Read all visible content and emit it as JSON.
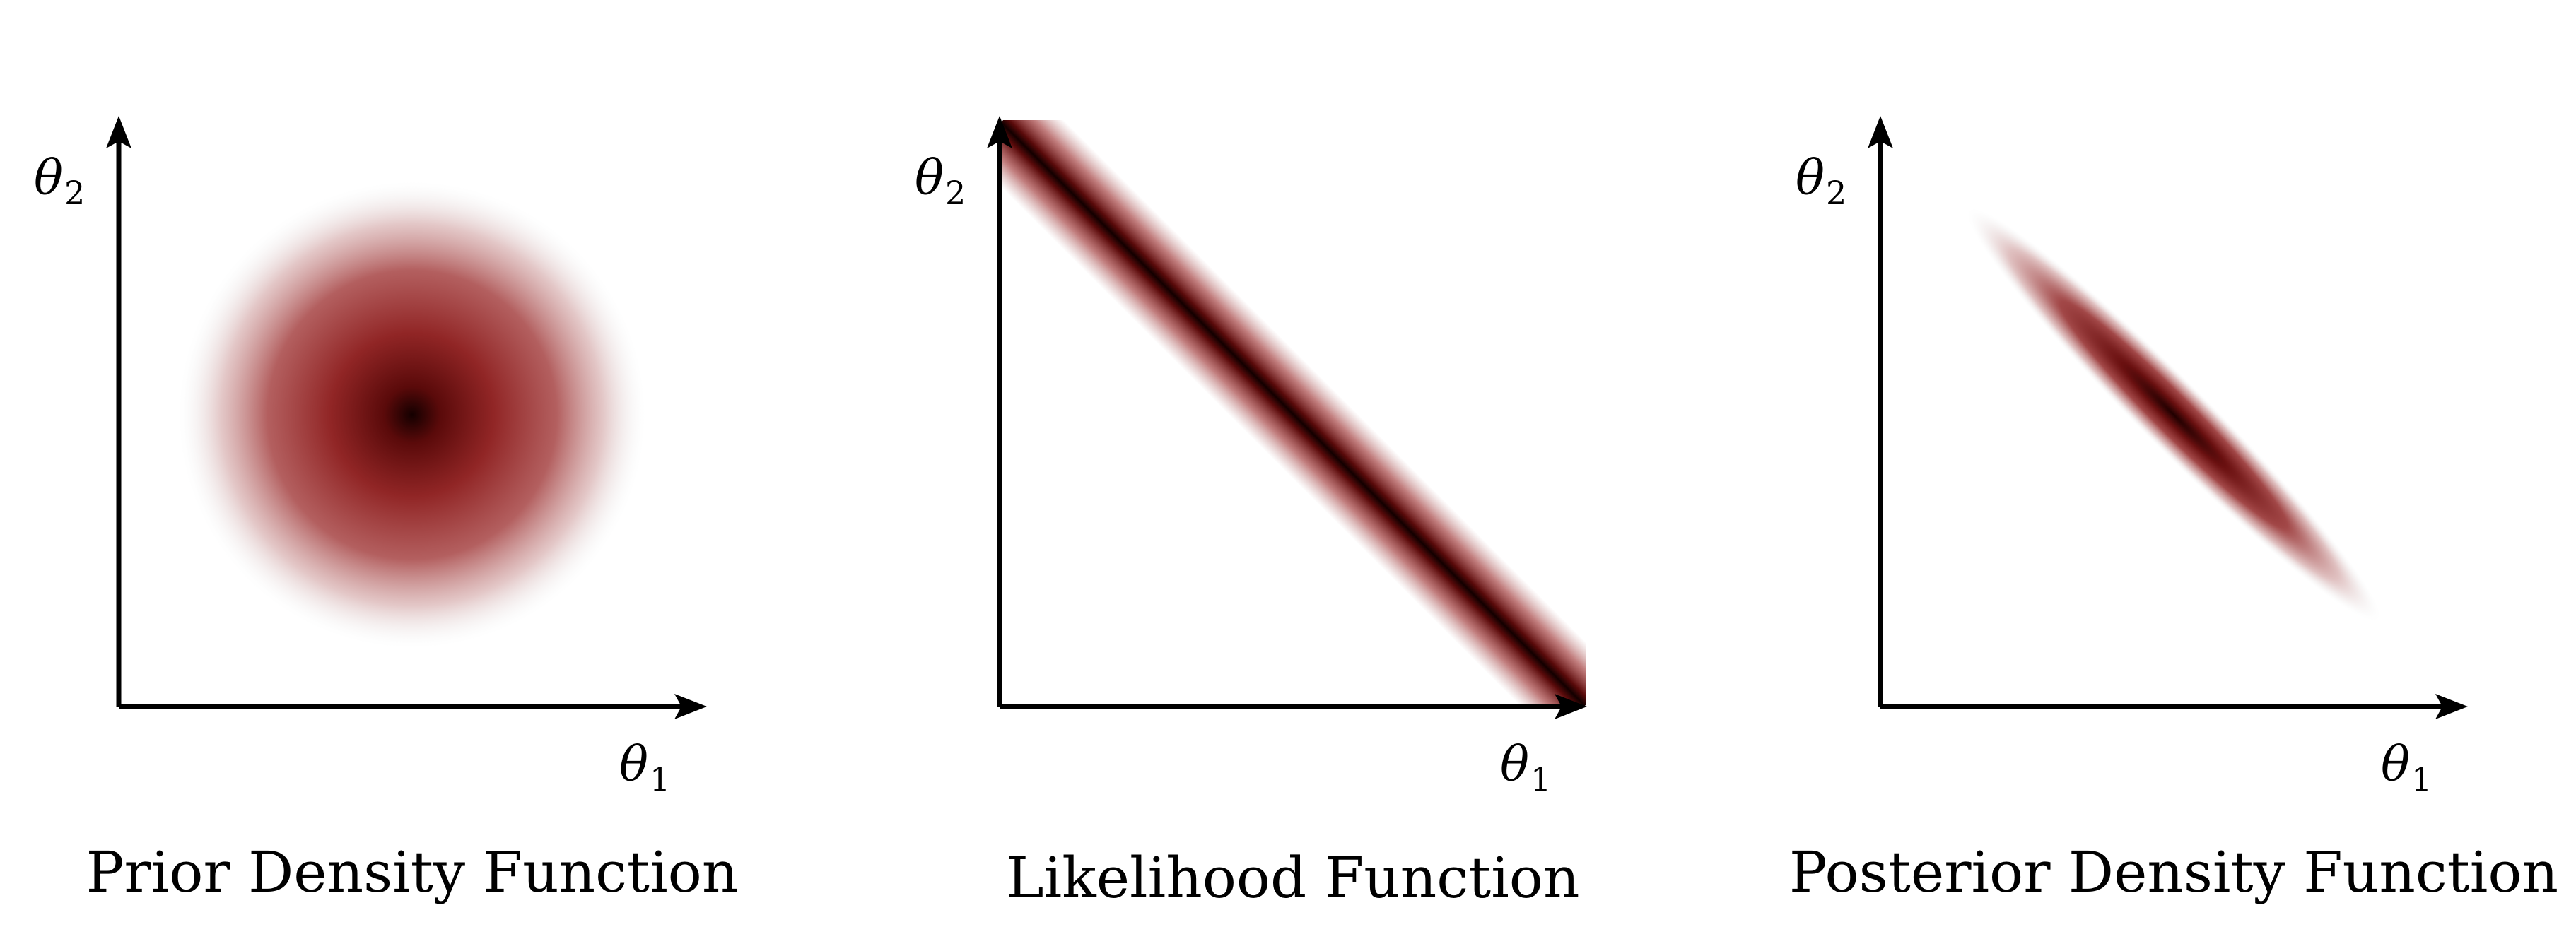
{
  "colors": {
    "density": "#8b1a1a",
    "density_core": "#1a0000",
    "axis": "#000000"
  },
  "panels": [
    {
      "caption": "Prior Density Function",
      "x_label_symbol": "θ",
      "x_label_sub": "1",
      "y_label_symbol": "θ",
      "y_label_sub": "2",
      "shape": "isotropic-gaussian"
    },
    {
      "caption": "Likelihood Function",
      "x_label_symbol": "θ",
      "x_label_sub": "1",
      "y_label_symbol": "θ",
      "y_label_sub": "2",
      "shape": "diagonal-ridge"
    },
    {
      "caption": "Posterior Density Function",
      "x_label_symbol": "θ",
      "x_label_sub": "1",
      "y_label_symbol": "θ",
      "y_label_sub": "2",
      "shape": "narrow-diagonal-ellipse"
    }
  ]
}
